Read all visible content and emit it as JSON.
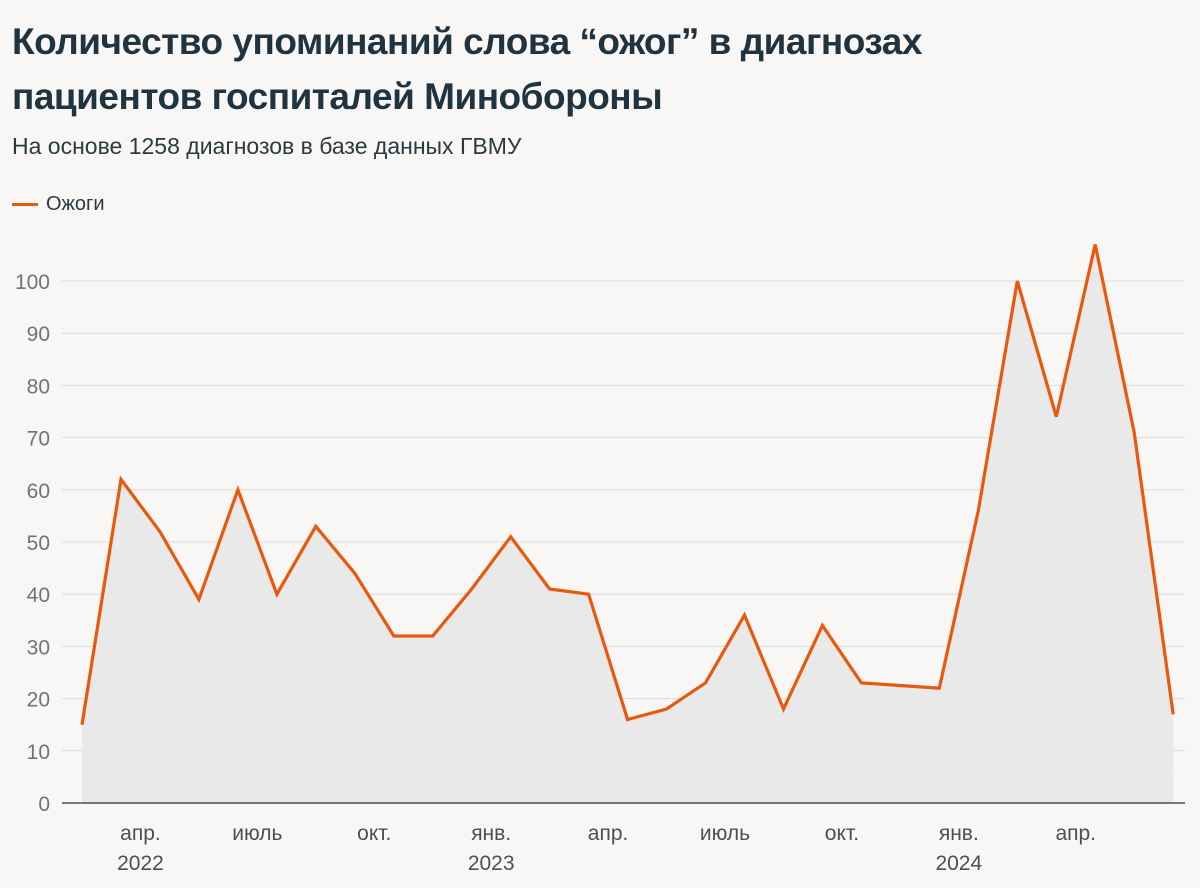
{
  "chart_data": {
    "type": "area",
    "title_lines": [
      "Количество упоминаний слова “ожог” в диагнозах",
      "пациентов госпиталей Минобороны"
    ],
    "subtitle": "На основе 1258 диагнозов в базе данных ГВМУ",
    "legend": [
      {
        "name": "Ожоги",
        "color": "#e8580d"
      }
    ],
    "ylim": [
      0,
      110
    ],
    "yticks": [
      0,
      10,
      20,
      30,
      40,
      50,
      60,
      70,
      80,
      90,
      100
    ],
    "x_tick_labels": [
      {
        "index": 1.5,
        "month": "апр.",
        "year": "2022"
      },
      {
        "index": 4.5,
        "month": "июль",
        "year": ""
      },
      {
        "index": 7.5,
        "month": "окт.",
        "year": ""
      },
      {
        "index": 10.5,
        "month": "янв.",
        "year": "2023"
      },
      {
        "index": 13.5,
        "month": "апр.",
        "year": ""
      },
      {
        "index": 16.5,
        "month": "июль",
        "year": ""
      },
      {
        "index": 19.5,
        "month": "окт.",
        "year": ""
      },
      {
        "index": 22.5,
        "month": "янв.",
        "year": "2024"
      },
      {
        "index": 25.5,
        "month": "апр.",
        "year": ""
      }
    ],
    "series": [
      {
        "name": "Ожоги",
        "color": "#e8580d",
        "values": [
          15,
          62,
          52,
          39,
          60,
          40,
          53,
          44,
          32,
          32,
          41,
          51,
          41,
          40,
          16,
          18,
          23,
          36,
          18,
          34,
          23,
          22.5,
          22,
          56,
          100,
          74,
          107,
          71,
          17
        ]
      }
    ],
    "grid": true
  }
}
